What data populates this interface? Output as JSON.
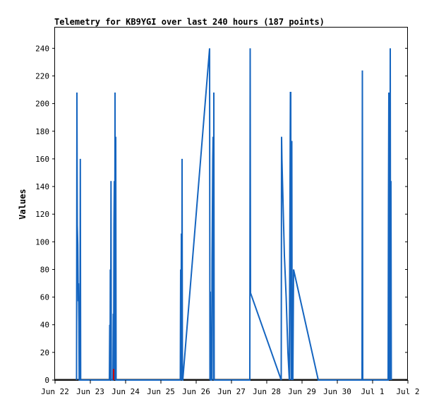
{
  "chart_data": {
    "type": "line",
    "title": "Telemetry for KB9YGI over last 240 hours (187 points)",
    "xlabel": "",
    "ylabel": "Values",
    "x_ticks": [
      "Jun 22",
      "Jun 23",
      "Jun 24",
      "Jun 25",
      "Jun 26",
      "Jun 27",
      "Jun 28",
      "Jun 29",
      "Jun 30",
      "Jul 1",
      "Jul 2"
    ],
    "xlim": [
      "Jun 22",
      "Jul 2"
    ],
    "y_ticks": [
      0,
      20,
      40,
      60,
      80,
      100,
      120,
      140,
      160,
      180,
      200,
      220,
      240
    ],
    "ylim": [
      0,
      255
    ],
    "grid": false,
    "colors": {
      "series": "#1565c0",
      "baseline": "#1a1a1a",
      "marker": "#cc0000"
    },
    "series": [
      {
        "values": [
          [
            22.61,
            0
          ],
          [
            22.62,
            208
          ],
          [
            22.63,
            112
          ],
          [
            22.645,
            98
          ],
          [
            22.655,
            57
          ],
          [
            22.665,
            70
          ],
          [
            22.675,
            42
          ],
          [
            22.685,
            0
          ],
          [
            22.705,
            0
          ],
          [
            22.715,
            160
          ],
          [
            22.725,
            0
          ],
          [
            23.54,
            0
          ],
          [
            23.55,
            40
          ],
          [
            23.56,
            0
          ],
          [
            23.565,
            80
          ],
          [
            23.575,
            0
          ],
          [
            23.585,
            144
          ],
          [
            23.595,
            0
          ],
          [
            23.64,
            0
          ],
          [
            23.65,
            48
          ],
          [
            23.66,
            0
          ],
          [
            23.67,
            112
          ],
          [
            23.68,
            144
          ],
          [
            23.69,
            0
          ],
          [
            23.7,
            208
          ],
          [
            23.71,
            0
          ],
          [
            23.72,
            176
          ],
          [
            23.73,
            0
          ],
          [
            25.55,
            0
          ],
          [
            25.56,
            80
          ],
          [
            25.57,
            0
          ],
          [
            25.58,
            106
          ],
          [
            25.59,
            0
          ],
          [
            25.6,
            160
          ],
          [
            25.61,
            0
          ],
          [
            25.62,
            0
          ],
          [
            26.38,
            240
          ],
          [
            26.39,
            0
          ],
          [
            26.4,
            64
          ],
          [
            26.41,
            0
          ],
          [
            26.44,
            0
          ],
          [
            26.45,
            88
          ],
          [
            26.46,
            124
          ],
          [
            26.47,
            160
          ],
          [
            26.48,
            176
          ],
          [
            26.49,
            0
          ],
          [
            26.5,
            208
          ],
          [
            26.51,
            0
          ],
          [
            27.52,
            0
          ],
          [
            27.53,
            240
          ],
          [
            27.54,
            63
          ],
          [
            28.41,
            0
          ],
          [
            28.42,
            176
          ],
          [
            28.43,
            160
          ],
          [
            28.44,
            150
          ],
          [
            28.45,
            140
          ],
          [
            28.5,
            90
          ],
          [
            28.55,
            60
          ],
          [
            28.6,
            20
          ],
          [
            28.64,
            0
          ],
          [
            28.66,
            144
          ],
          [
            28.67,
            208
          ],
          [
            28.68,
            208
          ],
          [
            28.69,
            0
          ],
          [
            28.7,
            104
          ],
          [
            28.71,
            173
          ],
          [
            28.72,
            0
          ],
          [
            28.73,
            35
          ],
          [
            28.74,
            0
          ],
          [
            28.76,
            80
          ],
          [
            29.46,
            0
          ],
          [
            30.7,
            0
          ],
          [
            30.71,
            224
          ],
          [
            30.72,
            0
          ],
          [
            31.44,
            0
          ],
          [
            31.45,
            128
          ],
          [
            31.46,
            208
          ],
          [
            31.47,
            0
          ],
          [
            31.48,
            112
          ],
          [
            31.49,
            0
          ],
          [
            31.5,
            240
          ],
          [
            31.51,
            0
          ],
          [
            31.52,
            144
          ],
          [
            31.53,
            0
          ]
        ]
      }
    ],
    "markers": [
      [
        23.66,
        8
      ]
    ]
  }
}
